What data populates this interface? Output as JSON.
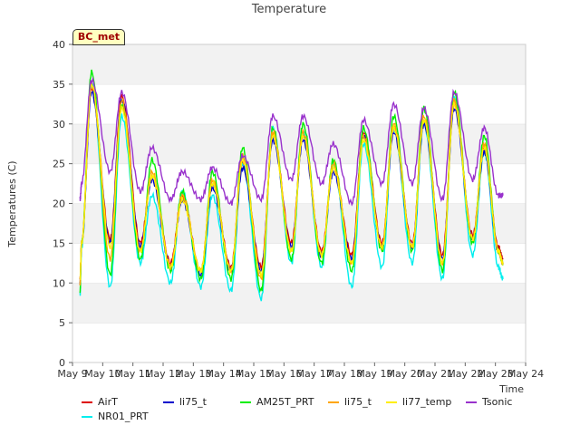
{
  "chart_data": {
    "type": "line",
    "title": "Temperature",
    "xlabel": "Time",
    "ylabel": "Temperatures (C)",
    "ylim": [
      0,
      40
    ],
    "yticks": [
      0,
      5,
      10,
      15,
      20,
      25,
      30,
      35,
      40
    ],
    "xlim": [
      "May 9",
      "May 24"
    ],
    "xticks": [
      "May 9",
      "May 10",
      "May 11",
      "May 12",
      "May 13",
      "May 14",
      "May 15",
      "May 16",
      "May 17",
      "May 18",
      "May 19",
      "May 20",
      "May 21",
      "May 22",
      "May 23",
      "May 24"
    ],
    "grid": true,
    "legend_position": "bottom",
    "site_label": "BC_met",
    "series": [
      {
        "name": "AirT",
        "color": "#dd0000",
        "max": [
          34.5,
          33.5,
          23.5,
          21.0,
          22.5,
          25.0,
          28.5,
          28.5,
          24.5,
          29.0,
          29.5,
          30.5,
          32.5,
          27.0
        ],
        "min": [
          10.5,
          15.5,
          15.0,
          12.5,
          11.5,
          12.0,
          12.0,
          15.0,
          14.0,
          13.5,
          15.0,
          15.0,
          13.5,
          16.0,
          13.0
        ]
      },
      {
        "name": "NR01_PRT",
        "color": "#00eeee",
        "max": [
          35.0,
          31.0,
          21.0,
          21.5,
          21.0,
          25.0,
          29.5,
          29.0,
          25.0,
          27.5,
          29.5,
          30.0,
          33.5,
          26.5
        ],
        "min": [
          8.5,
          9.5,
          12.5,
          10.0,
          9.5,
          9.0,
          8.0,
          12.5,
          12.0,
          9.5,
          12.0,
          12.5,
          10.5,
          13.5,
          10.5
        ]
      },
      {
        "name": "li75_t",
        "color": "#0000cc",
        "max": [
          34.0,
          33.0,
          23.0,
          20.5,
          22.0,
          24.5,
          28.0,
          28.0,
          24.0,
          28.5,
          29.0,
          30.0,
          32.0,
          26.5
        ],
        "min": [
          10.0,
          15.0,
          14.5,
          12.0,
          11.0,
          11.5,
          11.5,
          14.5,
          13.5,
          13.0,
          14.5,
          14.5,
          13.0,
          15.5,
          12.5
        ]
      },
      {
        "name": "AM25T_PRT",
        "color": "#00ee00",
        "max": [
          36.5,
          32.5,
          25.5,
          21.5,
          24.0,
          27.0,
          29.5,
          30.0,
          25.5,
          29.5,
          31.0,
          32.0,
          34.0,
          28.5
        ],
        "min": [
          9.0,
          11.0,
          13.0,
          11.5,
          10.5,
          10.5,
          9.0,
          13.0,
          12.5,
          11.5,
          14.0,
          14.0,
          11.5,
          15.0,
          12.5
        ]
      },
      {
        "name": "li75_t",
        "color": "#ffa500",
        "max": [
          35.0,
          33.0,
          24.0,
          21.0,
          23.0,
          26.0,
          29.0,
          29.0,
          25.0,
          28.5,
          30.0,
          31.0,
          33.0,
          27.5
        ],
        "min": [
          10.0,
          13.0,
          14.0,
          12.0,
          11.5,
          11.5,
          10.5,
          14.0,
          13.5,
          12.5,
          14.5,
          14.5,
          12.5,
          15.5,
          12.5
        ]
      },
      {
        "name": "li77_temp",
        "color": "#ffee00",
        "max": [
          35.0,
          32.0,
          23.5,
          20.5,
          22.5,
          25.5,
          28.5,
          28.5,
          24.5,
          28.0,
          29.5,
          30.5,
          32.5,
          27.0
        ],
        "min": [
          10.5,
          14.5,
          14.0,
          12.0,
          11.5,
          11.5,
          11.0,
          14.0,
          13.5,
          12.5,
          14.5,
          14.5,
          12.5,
          15.5,
          12.5
        ]
      },
      {
        "name": "Tsonic",
        "color": "#9932cc",
        "max": [
          35.5,
          34.0,
          27.0,
          24.0,
          24.5,
          26.0,
          31.0,
          31.0,
          27.5,
          30.5,
          32.5,
          32.0,
          34.0,
          29.5
        ],
        "min": [
          20.5,
          24.0,
          21.5,
          20.5,
          20.5,
          20.0,
          20.5,
          23.0,
          22.5,
          20.0,
          22.5,
          22.5,
          20.5,
          23.0,
          21.0
        ]
      }
    ]
  }
}
